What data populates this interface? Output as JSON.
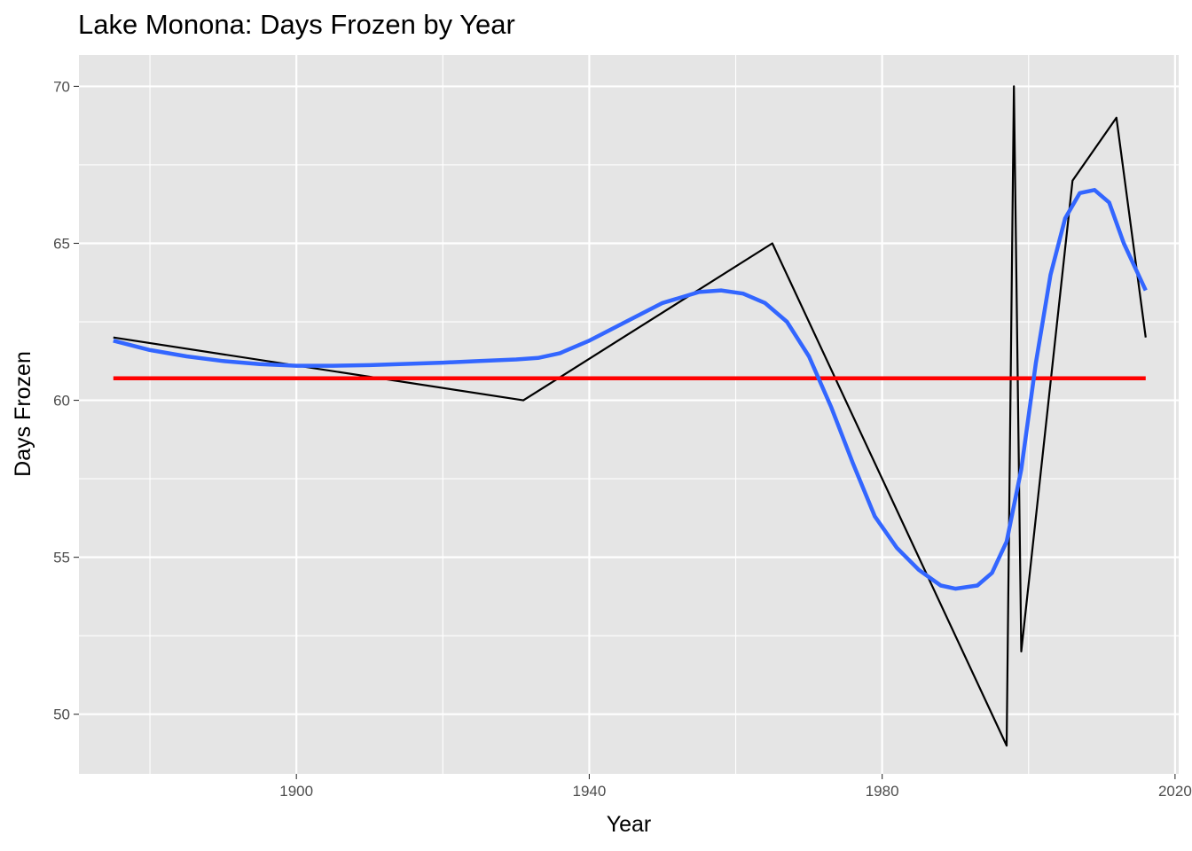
{
  "chart_data": {
    "type": "line",
    "title": "Lake Monona: Days Frozen by Year",
    "xlabel": "Year",
    "ylabel": "Days Frozen",
    "xlim": [
      1870.3,
      2020.5
    ],
    "ylim": [
      48.1,
      71.0
    ],
    "x_ticks": [
      1900,
      1940,
      1980,
      2020
    ],
    "y_ticks": [
      50,
      55,
      60,
      65,
      70
    ],
    "grid": true,
    "series": [
      {
        "style": "raw",
        "color": "#000000",
        "x": [
          1875,
          1931,
          1965,
          1997,
          1998,
          1999,
          2006,
          2012,
          2016
        ],
        "y": [
          62,
          60,
          65,
          49,
          70,
          52,
          67,
          69,
          62
        ]
      },
      {
        "style": "mean",
        "color": "#ff0000",
        "x": [
          1875,
          2016
        ],
        "y": [
          60.7,
          60.7
        ]
      },
      {
        "style": "smooth",
        "color": "#3366ff",
        "x": [
          1875,
          1880,
          1885,
          1890,
          1895,
          1900,
          1905,
          1910,
          1915,
          1920,
          1925,
          1930,
          1933,
          1936,
          1940,
          1945,
          1950,
          1955,
          1958,
          1961,
          1964,
          1967,
          1970,
          1973,
          1976,
          1979,
          1982,
          1985,
          1988,
          1990,
          1993,
          1995,
          1997,
          1999,
          2001,
          2003,
          2005,
          2007,
          2009,
          2011,
          2013,
          2016
        ],
        "y": [
          61.9,
          61.6,
          61.4,
          61.25,
          61.15,
          61.1,
          61.1,
          61.12,
          61.16,
          61.2,
          61.25,
          61.3,
          61.35,
          61.5,
          61.9,
          62.5,
          63.1,
          63.45,
          63.5,
          63.4,
          63.1,
          62.5,
          61.4,
          59.8,
          58.0,
          56.3,
          55.3,
          54.6,
          54.1,
          54.0,
          54.1,
          54.5,
          55.5,
          57.8,
          61.2,
          64.0,
          65.8,
          66.6,
          66.7,
          66.3,
          65.0,
          63.5
        ]
      }
    ]
  }
}
